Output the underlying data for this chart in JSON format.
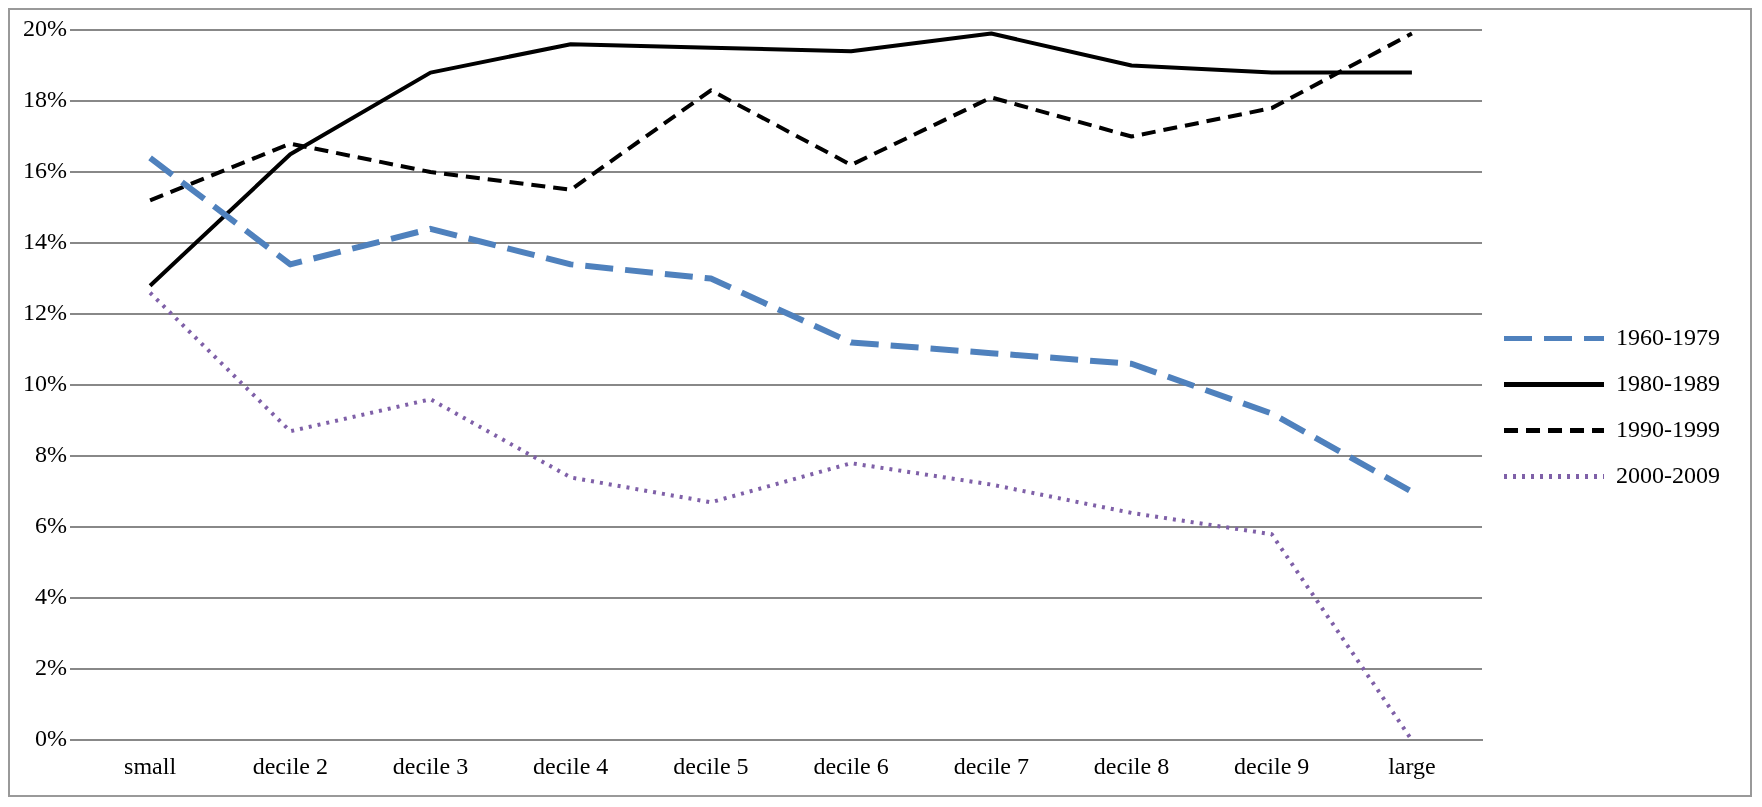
{
  "chart_data": {
    "type": "line",
    "categories": [
      "small",
      "decile 2",
      "decile 3",
      "decile 4",
      "decile 5",
      "decile 6",
      "decile 7",
      "decile 8",
      "decile 9",
      "large"
    ],
    "series": [
      {
        "name": "1960-1979",
        "color": "#4f81bd",
        "line_style": "dashed",
        "values": [
          16.4,
          13.4,
          14.4,
          13.4,
          13.0,
          11.2,
          10.9,
          10.6,
          9.2,
          7.0
        ]
      },
      {
        "name": "1980-1989",
        "color": "#000000",
        "line_style": "solid",
        "values": [
          12.8,
          16.5,
          18.8,
          19.6,
          19.5,
          19.4,
          19.9,
          19.0,
          18.8,
          18.8
        ]
      },
      {
        "name": "1990-1999",
        "color": "#000000",
        "line_style": "dashed",
        "values": [
          15.2,
          16.8,
          16.0,
          15.5,
          18.3,
          16.2,
          18.1,
          17.0,
          17.8,
          19.9
        ]
      },
      {
        "name": "2000-2009",
        "color": "#7f60a8",
        "line_style": "dotted",
        "values": [
          12.6,
          8.7,
          9.6,
          7.4,
          6.7,
          7.8,
          7.2,
          6.4,
          5.8,
          0.0
        ]
      }
    ],
    "ylim": [
      0,
      20
    ],
    "yticks": [
      {
        "value": 0,
        "label": "0%"
      },
      {
        "value": 2,
        "label": "2%"
      },
      {
        "value": 4,
        "label": "4%"
      },
      {
        "value": 6,
        "label": "6%"
      },
      {
        "value": 8,
        "label": "8%"
      },
      {
        "value": 10,
        "label": "10%"
      },
      {
        "value": 12,
        "label": "12%"
      },
      {
        "value": 14,
        "label": "14%"
      },
      {
        "value": 16,
        "label": "16%"
      },
      {
        "value": 18,
        "label": "18%"
      },
      {
        "value": 20,
        "label": "20%"
      }
    ],
    "grid": "y",
    "legend": "right",
    "marker": "none"
  }
}
